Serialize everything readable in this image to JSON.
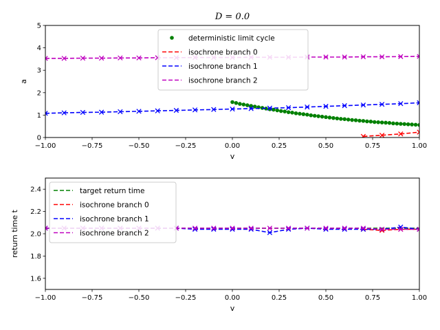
{
  "chart_data": [
    {
      "type": "line",
      "title": "D = 0.0",
      "xlabel": "v",
      "ylabel": "a",
      "xlim": [
        -1,
        1
      ],
      "ylim": [
        0,
        5
      ],
      "xticks": [
        "−1.00",
        "−0.75",
        "−0.50",
        "−0.25",
        "0.00",
        "0.25",
        "0.50",
        "0.75",
        "1.00"
      ],
      "xtick_values": [
        -1,
        -0.75,
        -0.5,
        -0.25,
        0,
        0.25,
        0.5,
        0.75,
        1
      ],
      "yticks": [
        "0",
        "1",
        "2",
        "3",
        "4",
        "5"
      ],
      "ytick_values": [
        0,
        1,
        2,
        3,
        4,
        5
      ],
      "legend_position": "top-center",
      "series": [
        {
          "name": "deterministic limit cycle",
          "style": "dots",
          "color": "#008000",
          "x": [
            0.0,
            0.02,
            0.04,
            0.06,
            0.08,
            0.1,
            0.12,
            0.14,
            0.16,
            0.18,
            0.2,
            0.22,
            0.24,
            0.26,
            0.28,
            0.3,
            0.32,
            0.34,
            0.36,
            0.38,
            0.4,
            0.42,
            0.44,
            0.46,
            0.48,
            0.5,
            0.52,
            0.54,
            0.56,
            0.58,
            0.6,
            0.62,
            0.64,
            0.66,
            0.68,
            0.7,
            0.72,
            0.74,
            0.76,
            0.78,
            0.8,
            0.82,
            0.84,
            0.86,
            0.88,
            0.9,
            0.92,
            0.94,
            0.96,
            0.98,
            1.0
          ],
          "y": [
            1.58,
            1.54,
            1.5,
            1.47,
            1.44,
            1.41,
            1.38,
            1.35,
            1.32,
            1.29,
            1.26,
            1.24,
            1.21,
            1.18,
            1.16,
            1.13,
            1.11,
            1.08,
            1.06,
            1.04,
            1.02,
            0.99,
            0.97,
            0.95,
            0.93,
            0.91,
            0.89,
            0.87,
            0.85,
            0.83,
            0.82,
            0.8,
            0.78,
            0.77,
            0.75,
            0.74,
            0.72,
            0.71,
            0.69,
            0.68,
            0.67,
            0.66,
            0.65,
            0.63,
            0.62,
            0.61,
            0.6,
            0.59,
            0.58,
            0.57,
            0.56
          ]
        },
        {
          "name": "isochrone branch 0",
          "style": "dashed-x",
          "color": "#ff0000",
          "x": [
            0.7,
            0.8,
            0.9,
            1.0
          ],
          "y": [
            0.05,
            0.1,
            0.16,
            0.24
          ]
        },
        {
          "name": "isochrone branch 1",
          "style": "dashed-x",
          "color": "#0000ff",
          "x": [
            -1.0,
            -0.9,
            -0.8,
            -0.7,
            -0.6,
            -0.5,
            -0.4,
            -0.3,
            -0.2,
            -0.1,
            0.0,
            0.1,
            0.2,
            0.3,
            0.4,
            0.5,
            0.6,
            0.7,
            0.8,
            0.9,
            1.0
          ],
          "y": [
            1.08,
            1.1,
            1.12,
            1.13,
            1.15,
            1.17,
            1.19,
            1.21,
            1.23,
            1.25,
            1.27,
            1.29,
            1.31,
            1.33,
            1.36,
            1.39,
            1.42,
            1.45,
            1.48,
            1.51,
            1.55
          ]
        },
        {
          "name": "isochrone branch 2",
          "style": "dashed-x",
          "color": "#bf00bf",
          "x": [
            -1.0,
            -0.9,
            -0.8,
            -0.7,
            -0.6,
            -0.5,
            -0.4,
            -0.3,
            -0.2,
            -0.1,
            0.0,
            0.1,
            0.2,
            0.3,
            0.4,
            0.5,
            0.6,
            0.7,
            0.8,
            0.9,
            1.0
          ],
          "y": [
            3.53,
            3.53,
            3.54,
            3.54,
            3.55,
            3.55,
            3.56,
            3.56,
            3.57,
            3.57,
            3.57,
            3.58,
            3.58,
            3.58,
            3.59,
            3.59,
            3.59,
            3.6,
            3.6,
            3.61,
            3.62
          ]
        }
      ]
    },
    {
      "type": "line",
      "xlabel": "v",
      "ylabel": "return time t",
      "xlim": [
        -1,
        1
      ],
      "ylim": [
        1.5,
        2.5
      ],
      "xticks": [
        "−1.00",
        "−0.75",
        "−0.50",
        "−0.25",
        "0.00",
        "0.25",
        "0.50",
        "0.75",
        "1.00"
      ],
      "xtick_values": [
        -1,
        -0.75,
        -0.5,
        -0.25,
        0,
        0.25,
        0.5,
        0.75,
        1
      ],
      "yticks": [
        "1.6",
        "1.8",
        "2.0",
        "2.2",
        "2.4"
      ],
      "ytick_values": [
        1.6,
        1.8,
        2.0,
        2.2,
        2.4
      ],
      "legend_position": "top-left",
      "series": [
        {
          "name": "target return time",
          "style": "dashed",
          "color": "#008000",
          "x": [
            -1.0,
            1.0
          ],
          "y": [
            2.05,
            2.05
          ]
        },
        {
          "name": "isochrone branch 0",
          "style": "dashed-x",
          "color": "#ff0000",
          "x": [
            0.7,
            0.8,
            0.9,
            1.0
          ],
          "y": [
            2.04,
            2.03,
            2.04,
            2.04
          ]
        },
        {
          "name": "isochrone branch 1",
          "style": "dashed-x",
          "color": "#0000ff",
          "x": [
            -1.0,
            -0.9,
            -0.8,
            -0.7,
            -0.6,
            -0.5,
            -0.4,
            -0.3,
            -0.2,
            -0.1,
            0.0,
            0.1,
            0.2,
            0.3,
            0.4,
            0.5,
            0.6,
            0.7,
            0.8,
            0.9,
            1.0
          ],
          "y": [
            2.05,
            2.05,
            2.05,
            2.05,
            2.05,
            2.05,
            2.05,
            2.05,
            2.04,
            2.04,
            2.04,
            2.04,
            2.01,
            2.04,
            2.05,
            2.04,
            2.04,
            2.04,
            2.04,
            2.06,
            2.04
          ]
        },
        {
          "name": "isochrone branch 2",
          "style": "dashed-x",
          "color": "#bf00bf",
          "x": [
            -1.0,
            -0.9,
            -0.8,
            -0.7,
            -0.6,
            -0.5,
            -0.4,
            -0.3,
            -0.2,
            -0.1,
            0.0,
            0.1,
            0.2,
            0.3,
            0.4,
            0.5,
            0.6,
            0.7,
            0.8,
            0.9,
            1.0
          ],
          "y": [
            2.05,
            2.05,
            2.05,
            2.05,
            2.05,
            2.05,
            2.05,
            2.05,
            2.05,
            2.05,
            2.05,
            2.05,
            2.05,
            2.05,
            2.05,
            2.05,
            2.05,
            2.05,
            2.04,
            2.04,
            2.04
          ]
        }
      ]
    }
  ]
}
